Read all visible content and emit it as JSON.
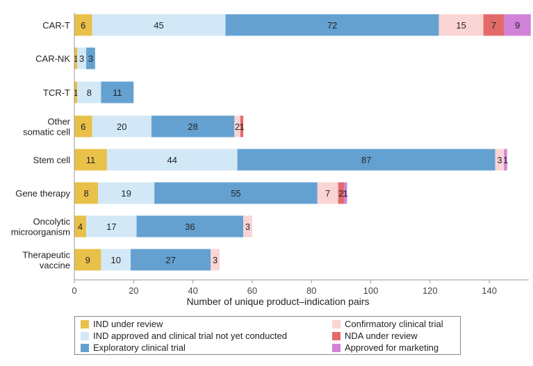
{
  "chart_data": {
    "type": "bar",
    "orientation": "horizontal",
    "stacked": true,
    "categories": [
      "CAR-T",
      "CAR-NK",
      "TCR-T",
      "Other somatic cell",
      "Stem cell",
      "Gene therapy",
      "Oncolytic microorganism",
      "Therapeutic vaccine"
    ],
    "category_lines": [
      [
        "CAR-T"
      ],
      [
        "CAR-NK"
      ],
      [
        "TCR-T"
      ],
      [
        "Other",
        "somatic cell"
      ],
      [
        "Stem cell"
      ],
      [
        "Gene therapy"
      ],
      [
        "Oncolytic",
        "microorganism"
      ],
      [
        "Therapeutic",
        "vaccine"
      ]
    ],
    "series": [
      {
        "name": "IND under review",
        "color": "#e9c04a",
        "values": [
          6,
          1,
          1,
          6,
          11,
          8,
          4,
          9
        ]
      },
      {
        "name": "IND approved and clinical trial not yet conducted",
        "color": "#d2e8f6",
        "values": [
          45,
          3,
          8,
          20,
          44,
          19,
          17,
          10
        ]
      },
      {
        "name": "Exploratory clinical trial",
        "color": "#64a1d1",
        "values": [
          72,
          3,
          11,
          28,
          87,
          55,
          36,
          27
        ]
      },
      {
        "name": "Confirmatory clinical trial",
        "color": "#fbd4d4",
        "values": [
          15,
          0,
          0,
          2,
          3,
          7,
          3,
          3
        ]
      },
      {
        "name": "NDA under review",
        "color": "#e46a6a",
        "values": [
          7,
          0,
          0,
          1,
          0,
          2,
          0,
          0
        ]
      },
      {
        "name": "Approved for marketing",
        "color": "#cf82d8",
        "values": [
          9,
          0,
          0,
          0,
          1,
          1,
          0,
          0
        ]
      }
    ],
    "xlabel": "Number of unique product–indication pairs",
    "xlim": [
      0,
      154
    ],
    "xticks": [
      0,
      20,
      40,
      60,
      80,
      100,
      120,
      140
    ],
    "grid": false,
    "legend_placement": "bottom"
  }
}
